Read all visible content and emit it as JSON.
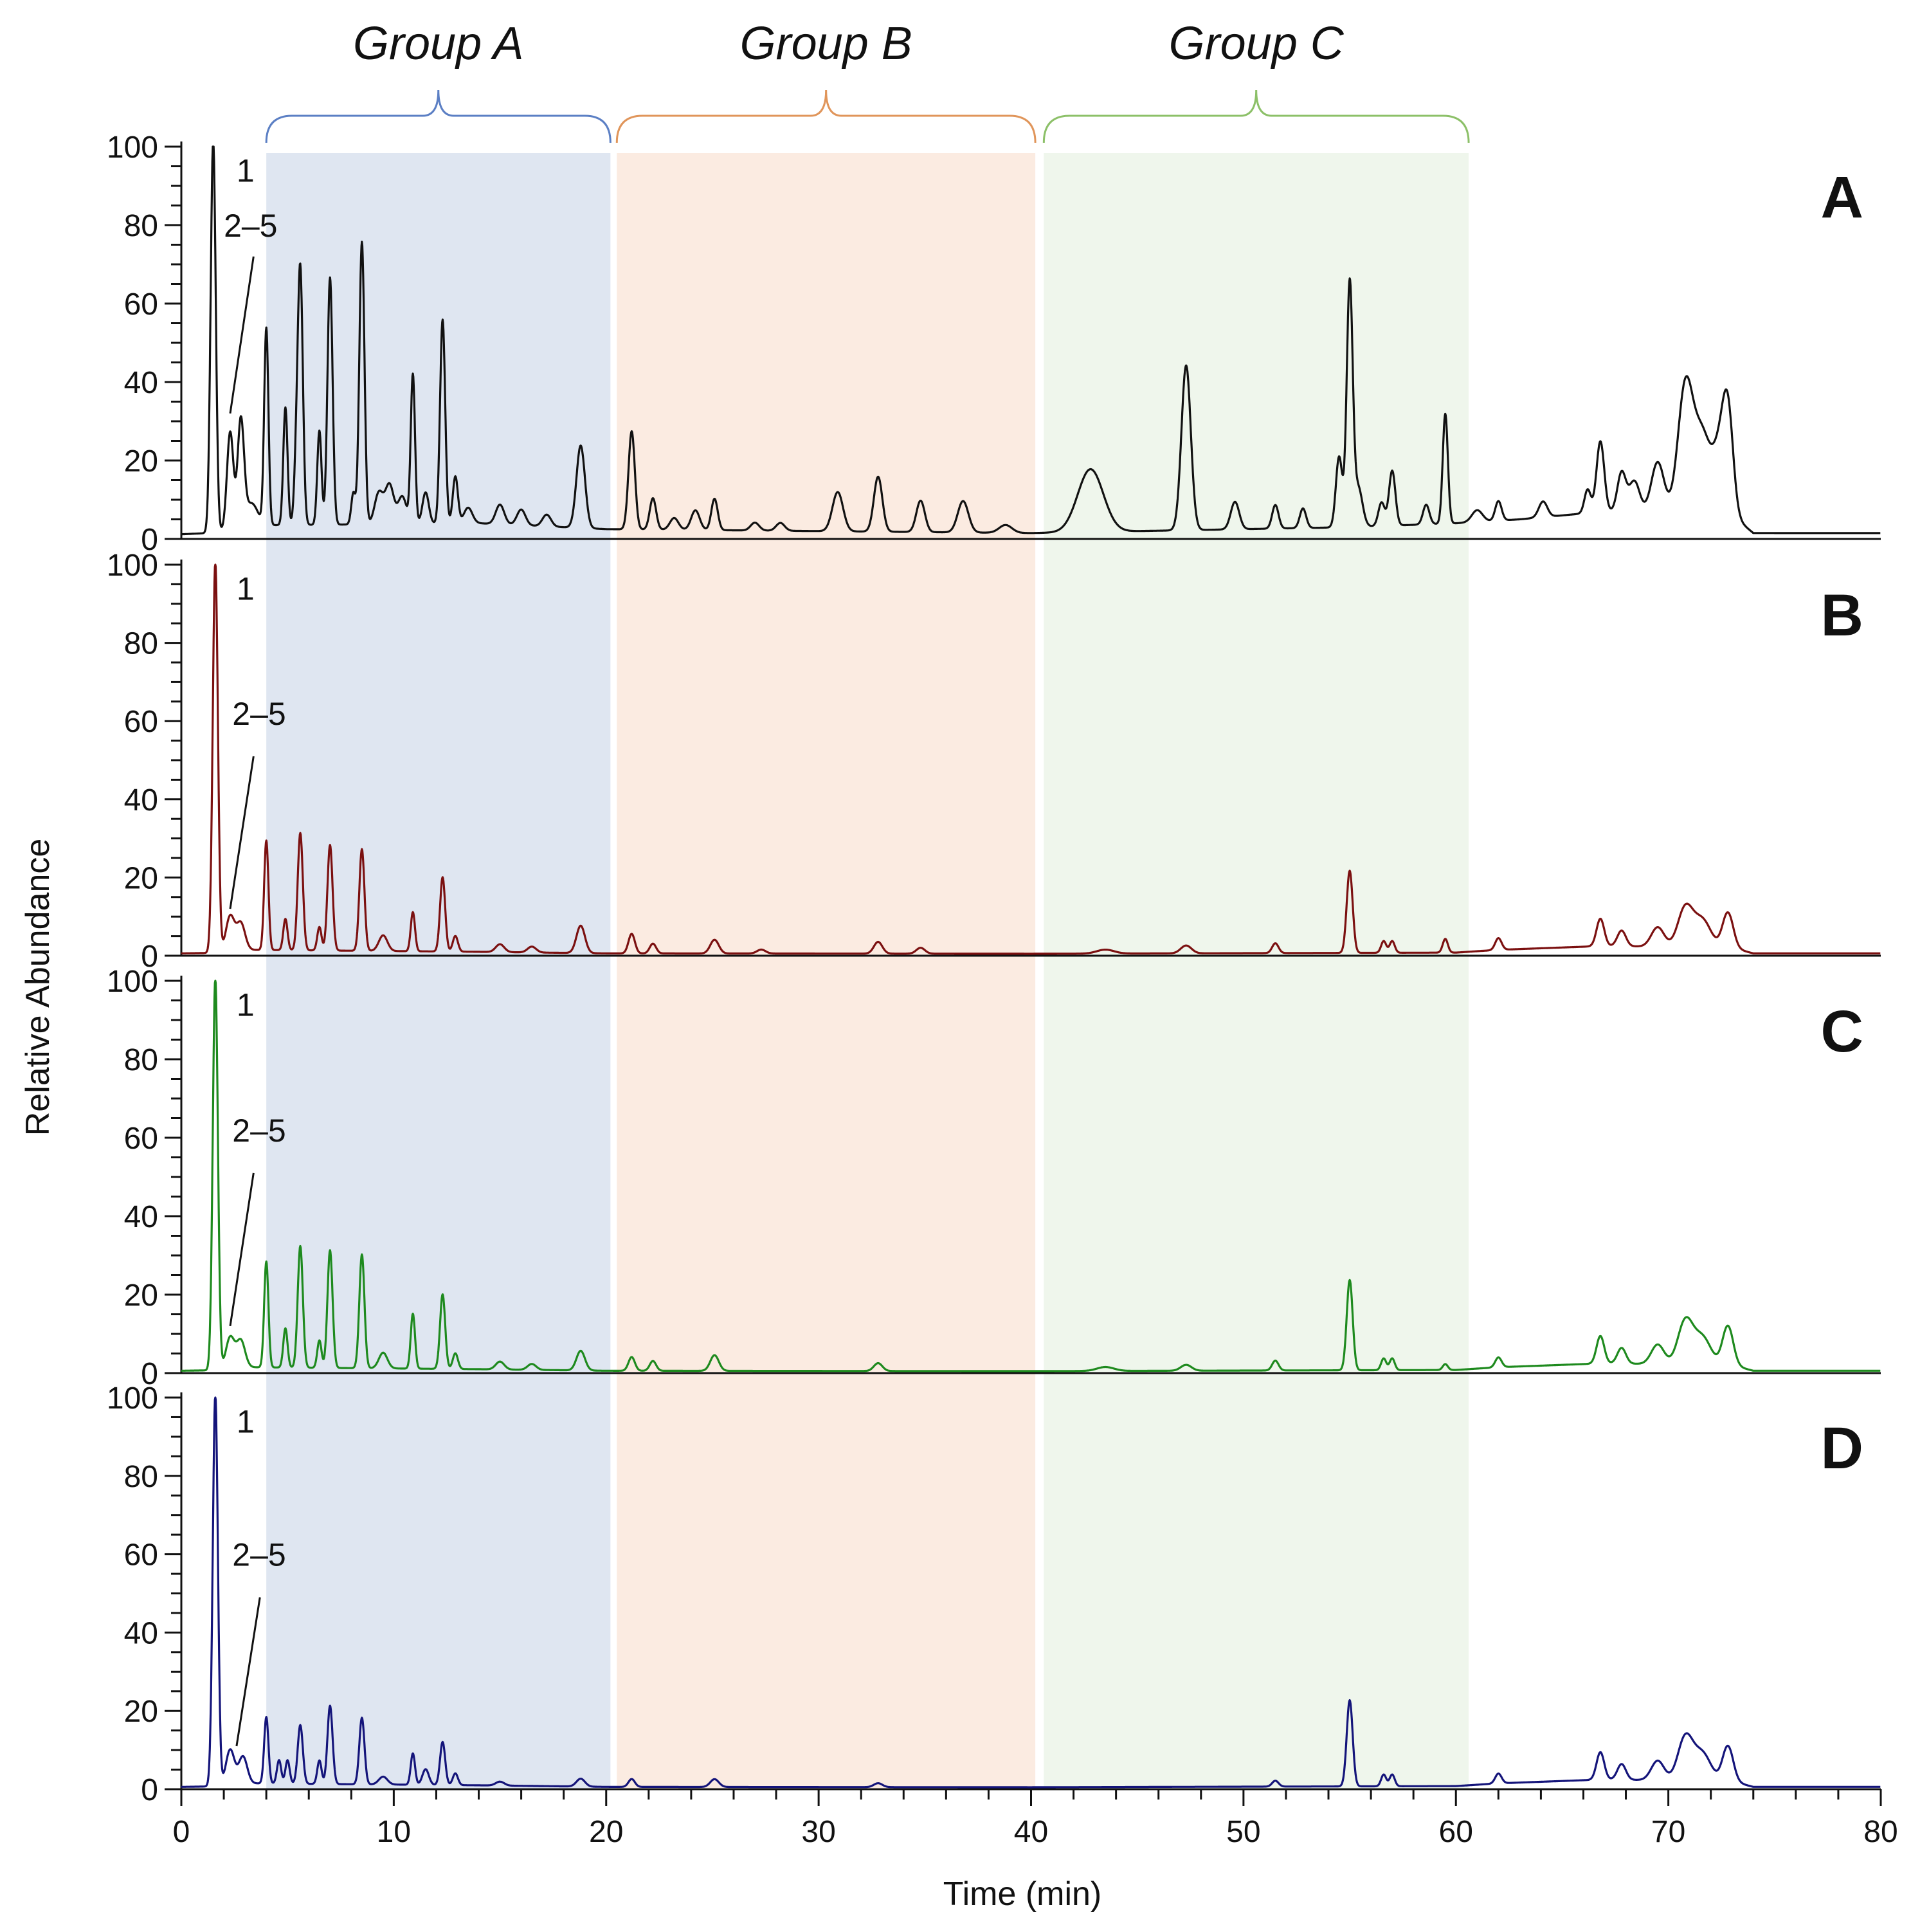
{
  "chart_data": {
    "type": "line",
    "title": "",
    "xlabel": "Time (min)",
    "ylabel": "Relative Abundance",
    "xlim": [
      0,
      80
    ],
    "ylim": [
      0,
      100
    ],
    "x_ticks": [
      0,
      10,
      20,
      30,
      40,
      50,
      60,
      70,
      80
    ],
    "y_ticks": [
      0,
      20,
      40,
      60,
      80,
      100
    ],
    "groups": [
      {
        "name": "Group A",
        "start": 4.0,
        "end": 20.2,
        "color": "#5b7fc4",
        "shade": "#dfe6f1"
      },
      {
        "name": "Group B",
        "start": 20.5,
        "end": 40.2,
        "color": "#e0955a",
        "shade": "#fbebe1"
      },
      {
        "name": "Group C",
        "start": 40.6,
        "end": 60.6,
        "color": "#8cc068",
        "shade": "#eff6ec"
      }
    ],
    "panels": [
      {
        "label": "A",
        "color": "#111111",
        "annotations": [
          {
            "text": "1",
            "x": 2.6,
            "y": 94
          },
          {
            "text": "2–5",
            "x": 2.0,
            "y": 80,
            "line_from": [
              3.4,
              72
            ],
            "line_to": [
              2.3,
              32
            ]
          }
        ],
        "baseline": [
          [
            0,
            1.2
          ],
          [
            1.3,
            1.5
          ],
          [
            3.2,
            3
          ],
          [
            4.0,
            3.5
          ],
          [
            14,
            4
          ],
          [
            20,
            2.5
          ],
          [
            30,
            2
          ],
          [
            40,
            1.5
          ],
          [
            45,
            2
          ],
          [
            55,
            3
          ],
          [
            60,
            4
          ],
          [
            63,
            5
          ],
          [
            67,
            7
          ],
          [
            73,
            6
          ],
          [
            74,
            1.5
          ],
          [
            80,
            1.5
          ]
        ],
        "peaks": [
          [
            1.5,
            100,
            0.12
          ],
          [
            2.3,
            25,
            0.15
          ],
          [
            2.8,
            27,
            0.15
          ],
          [
            3.3,
            6,
            0.3
          ],
          [
            4.0,
            50,
            0.1
          ],
          [
            4.9,
            30,
            0.1
          ],
          [
            5.4,
            12,
            0.1
          ],
          [
            5.6,
            65,
            0.12
          ],
          [
            6.5,
            24,
            0.1
          ],
          [
            7.0,
            63,
            0.12
          ],
          [
            8.1,
            8,
            0.1
          ],
          [
            8.5,
            72,
            0.12
          ],
          [
            9.3,
            8,
            0.2
          ],
          [
            9.8,
            10,
            0.2
          ],
          [
            10.4,
            7,
            0.2
          ],
          [
            10.9,
            38,
            0.1
          ],
          [
            11.5,
            8,
            0.15
          ],
          [
            12.3,
            52,
            0.12
          ],
          [
            12.9,
            12,
            0.12
          ],
          [
            13.5,
            4,
            0.2
          ],
          [
            15.0,
            5,
            0.2
          ],
          [
            16.0,
            4,
            0.2
          ],
          [
            17.2,
            3,
            0.2
          ],
          [
            18.8,
            21,
            0.2
          ],
          [
            21.2,
            25,
            0.15
          ],
          [
            22.2,
            8,
            0.15
          ],
          [
            23.2,
            3,
            0.2
          ],
          [
            24.2,
            5,
            0.2
          ],
          [
            25.1,
            8,
            0.15
          ],
          [
            27.0,
            2,
            0.2
          ],
          [
            28.2,
            2,
            0.2
          ],
          [
            30.9,
            10,
            0.25
          ],
          [
            32.8,
            14,
            0.2
          ],
          [
            34.8,
            8,
            0.2
          ],
          [
            36.8,
            8,
            0.25
          ],
          [
            38.8,
            2,
            0.3
          ],
          [
            42.8,
            16,
            0.6
          ],
          [
            47.3,
            42,
            0.22
          ],
          [
            49.6,
            7,
            0.2
          ],
          [
            51.5,
            6,
            0.15
          ],
          [
            52.8,
            5,
            0.15
          ],
          [
            54.5,
            18,
            0.15
          ],
          [
            55.0,
            62,
            0.14
          ],
          [
            55.4,
            10,
            0.2
          ],
          [
            56.5,
            6,
            0.15
          ],
          [
            57.0,
            14,
            0.15
          ],
          [
            58.6,
            5,
            0.15
          ],
          [
            59.5,
            28,
            0.12
          ],
          [
            61.0,
            3,
            0.25
          ],
          [
            62.0,
            5,
            0.15
          ],
          [
            64.1,
            4,
            0.2
          ],
          [
            66.2,
            6,
            0.15
          ],
          [
            66.8,
            18,
            0.18
          ],
          [
            67.8,
            10,
            0.2
          ],
          [
            68.4,
            8,
            0.25
          ],
          [
            69.5,
            13,
            0.3
          ],
          [
            70.8,
            32,
            0.35
          ],
          [
            71.6,
            20,
            0.4
          ],
          [
            72.4,
            14,
            0.3
          ],
          [
            72.8,
            25,
            0.25
          ]
        ]
      },
      {
        "label": "B",
        "color": "#7b1010",
        "annotations": [
          {
            "text": "1",
            "x": 2.6,
            "y": 94
          },
          {
            "text": "2–5",
            "x": 2.4,
            "y": 62,
            "line_from": [
              3.4,
              51
            ],
            "line_to": [
              2.3,
              12
            ]
          }
        ],
        "baseline": [
          [
            0,
            0.6
          ],
          [
            1.3,
            0.7
          ],
          [
            3.2,
            1.5
          ],
          [
            14,
            1
          ],
          [
            20,
            0.6
          ],
          [
            40,
            0.5
          ],
          [
            60,
            0.8
          ],
          [
            62,
            1.5
          ],
          [
            67,
            2.5
          ],
          [
            73,
            2
          ],
          [
            74,
            0.6
          ],
          [
            80,
            0.6
          ]
        ],
        "peaks": [
          [
            1.6,
            100,
            0.12
          ],
          [
            2.3,
            9,
            0.2
          ],
          [
            2.8,
            7,
            0.2
          ],
          [
            4.0,
            28,
            0.1
          ],
          [
            4.9,
            8,
            0.1
          ],
          [
            5.6,
            30,
            0.12
          ],
          [
            6.5,
            6,
            0.1
          ],
          [
            7.0,
            27,
            0.12
          ],
          [
            8.5,
            26,
            0.12
          ],
          [
            9.5,
            4,
            0.2
          ],
          [
            10.9,
            10,
            0.1
          ],
          [
            12.3,
            19,
            0.12
          ],
          [
            12.9,
            4,
            0.12
          ],
          [
            15.0,
            2,
            0.2
          ],
          [
            16.5,
            1.5,
            0.2
          ],
          [
            18.8,
            7,
            0.2
          ],
          [
            21.2,
            5,
            0.15
          ],
          [
            22.2,
            2.5,
            0.15
          ],
          [
            25.1,
            3.5,
            0.2
          ],
          [
            27.3,
            1,
            0.2
          ],
          [
            32.8,
            3,
            0.2
          ],
          [
            34.8,
            1.5,
            0.2
          ],
          [
            43.5,
            1,
            0.4
          ],
          [
            47.3,
            2,
            0.25
          ],
          [
            51.5,
            2.5,
            0.15
          ],
          [
            55.0,
            21,
            0.14
          ],
          [
            56.6,
            3,
            0.12
          ],
          [
            57.0,
            3,
            0.12
          ],
          [
            59.5,
            3.5,
            0.12
          ],
          [
            62.0,
            3,
            0.15
          ],
          [
            66.8,
            7,
            0.18
          ],
          [
            67.8,
            4,
            0.2
          ],
          [
            69.5,
            5,
            0.3
          ],
          [
            70.8,
            10,
            0.35
          ],
          [
            71.6,
            7,
            0.4
          ],
          [
            72.8,
            9,
            0.25
          ]
        ]
      },
      {
        "label": "C",
        "color": "#1e8a1e",
        "annotations": [
          {
            "text": "1",
            "x": 2.6,
            "y": 94
          },
          {
            "text": "2–5",
            "x": 2.4,
            "y": 62,
            "line_from": [
              3.4,
              51
            ],
            "line_to": [
              2.3,
              12
            ]
          }
        ],
        "baseline": [
          [
            0,
            0.6
          ],
          [
            1.3,
            0.7
          ],
          [
            3.2,
            1.5
          ],
          [
            14,
            1
          ],
          [
            20,
            0.6
          ],
          [
            40,
            0.5
          ],
          [
            60,
            0.8
          ],
          [
            62,
            1.5
          ],
          [
            67,
            2.5
          ],
          [
            73,
            2
          ],
          [
            74,
            0.6
          ],
          [
            80,
            0.6
          ]
        ],
        "peaks": [
          [
            1.6,
            100,
            0.12
          ],
          [
            2.3,
            8,
            0.2
          ],
          [
            2.8,
            7,
            0.2
          ],
          [
            4.0,
            27,
            0.1
          ],
          [
            4.9,
            10,
            0.1
          ],
          [
            5.6,
            31,
            0.12
          ],
          [
            6.5,
            7,
            0.1
          ],
          [
            7.0,
            30,
            0.12
          ],
          [
            8.5,
            29,
            0.12
          ],
          [
            9.5,
            4,
            0.2
          ],
          [
            10.9,
            14,
            0.1
          ],
          [
            12.3,
            19,
            0.12
          ],
          [
            12.9,
            4,
            0.12
          ],
          [
            15.0,
            2,
            0.2
          ],
          [
            16.5,
            1.5,
            0.2
          ],
          [
            18.8,
            5,
            0.2
          ],
          [
            21.2,
            3.5,
            0.15
          ],
          [
            22.2,
            2.5,
            0.15
          ],
          [
            25.1,
            4,
            0.2
          ],
          [
            32.8,
            2,
            0.2
          ],
          [
            43.5,
            1,
            0.4
          ],
          [
            47.3,
            1.5,
            0.25
          ],
          [
            51.5,
            2.5,
            0.15
          ],
          [
            55.0,
            23,
            0.14
          ],
          [
            56.6,
            3,
            0.12
          ],
          [
            57.0,
            3,
            0.12
          ],
          [
            59.5,
            1.5,
            0.12
          ],
          [
            62.0,
            2.5,
            0.15
          ],
          [
            66.8,
            7,
            0.18
          ],
          [
            67.8,
            4,
            0.2
          ],
          [
            69.5,
            5,
            0.3
          ],
          [
            70.8,
            11,
            0.35
          ],
          [
            71.6,
            7,
            0.4
          ],
          [
            72.8,
            10,
            0.25
          ]
        ]
      },
      {
        "label": "D",
        "color": "#14147a",
        "annotations": [
          {
            "text": "1",
            "x": 2.6,
            "y": 94
          },
          {
            "text": "2–5",
            "x": 2.4,
            "y": 60,
            "line_from": [
              3.7,
              49
            ],
            "line_to": [
              2.6,
              11
            ]
          }
        ],
        "baseline": [
          [
            0,
            0.6
          ],
          [
            1.3,
            0.7
          ],
          [
            3.2,
            1.5
          ],
          [
            14,
            1
          ],
          [
            20,
            0.6
          ],
          [
            40,
            0.5
          ],
          [
            60,
            0.8
          ],
          [
            62,
            1.5
          ],
          [
            67,
            2.5
          ],
          [
            73,
            2
          ],
          [
            74,
            0.6
          ],
          [
            80,
            0.6
          ]
        ],
        "peaks": [
          [
            1.6,
            100,
            0.12
          ],
          [
            2.3,
            9,
            0.2
          ],
          [
            2.9,
            7,
            0.2
          ],
          [
            4.0,
            17,
            0.1
          ],
          [
            4.6,
            6,
            0.1
          ],
          [
            5.0,
            6,
            0.1
          ],
          [
            5.6,
            15,
            0.12
          ],
          [
            6.5,
            6,
            0.1
          ],
          [
            7.0,
            20,
            0.12
          ],
          [
            8.5,
            17,
            0.12
          ],
          [
            9.5,
            2,
            0.2
          ],
          [
            10.9,
            8,
            0.1
          ],
          [
            11.5,
            4,
            0.15
          ],
          [
            12.3,
            11,
            0.12
          ],
          [
            12.9,
            3,
            0.12
          ],
          [
            15.0,
            1,
            0.2
          ],
          [
            18.8,
            2,
            0.2
          ],
          [
            21.2,
            2,
            0.15
          ],
          [
            25.1,
            2,
            0.2
          ],
          [
            32.8,
            1,
            0.2
          ],
          [
            51.5,
            1.5,
            0.15
          ],
          [
            55.0,
            22,
            0.14
          ],
          [
            56.6,
            3,
            0.12
          ],
          [
            57.0,
            3,
            0.12
          ],
          [
            62.0,
            2.5,
            0.15
          ],
          [
            66.8,
            7,
            0.18
          ],
          [
            67.8,
            4,
            0.2
          ],
          [
            69.5,
            5,
            0.3
          ],
          [
            70.8,
            11,
            0.35
          ],
          [
            71.6,
            7,
            0.4
          ],
          [
            72.8,
            9,
            0.25
          ]
        ]
      }
    ]
  }
}
